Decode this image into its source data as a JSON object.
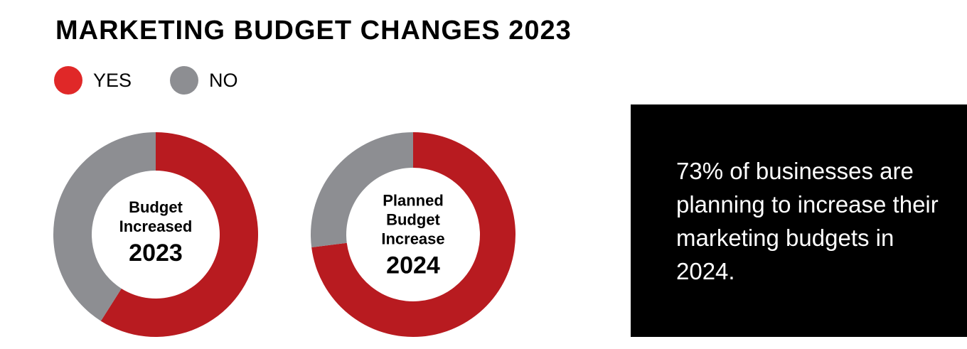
{
  "title": "MARKETING BUDGET CHANGES 2023",
  "legend": [
    {
      "label": "YES",
      "color": "#e02828"
    },
    {
      "label": "NO",
      "color": "#8d8e92"
    }
  ],
  "chart_data": [
    {
      "type": "pie",
      "variant": "donut",
      "center_label": "Budget Increased",
      "center_year": "2023",
      "categories": [
        "YES",
        "NO"
      ],
      "values": [
        59,
        41
      ],
      "colors": [
        "#b81b20",
        "#8d8e92"
      ]
    },
    {
      "type": "pie",
      "variant": "donut",
      "center_label": "Planned Budget Increase",
      "center_year": "2024",
      "categories": [
        "YES",
        "NO"
      ],
      "values": [
        73,
        27
      ],
      "colors": [
        "#b81b20",
        "#8d8e92"
      ]
    }
  ],
  "callout": {
    "text": "73% of businesses are planning to increase their marketing budgets in 2024."
  }
}
